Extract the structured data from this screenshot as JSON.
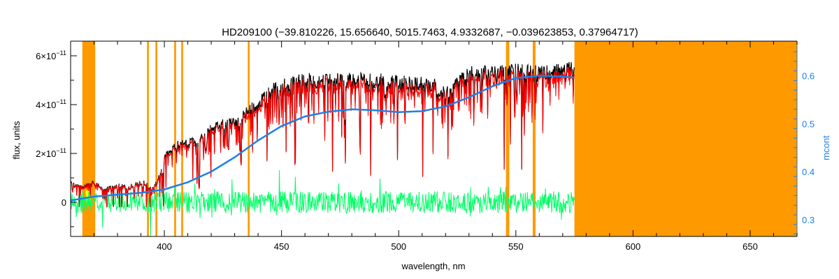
{
  "chart_data": {
    "type": "line",
    "title": "HD209100    (−39.810226, 15.656640, 5015.7463, 4.9332687, −0.039623853, 0.37964717)",
    "xlabel": "wavelength, nm",
    "ylabel": "flux, units",
    "y2label": "mcont",
    "xlim": [
      360,
      670
    ],
    "ylim": [
      -1.4e-11,
      6.6e-11
    ],
    "y2lim": [
      0.265,
      0.672
    ],
    "x_ticks": [
      400,
      450,
      500,
      550,
      600,
      650
    ],
    "x_tick_labels": [
      "400",
      "450",
      "500",
      "550",
      "600",
      "650"
    ],
    "y_ticks": [
      0,
      2e-11,
      4e-11,
      6e-11
    ],
    "y_tick_labels": [
      {
        "base": "0",
        "exp": ""
      },
      {
        "base": "2×10",
        "exp": "−11"
      },
      {
        "base": "4×10",
        "exp": "−11"
      },
      {
        "base": "6×10",
        "exp": "−11"
      }
    ],
    "y2_ticks": [
      0.3,
      0.4,
      0.5,
      0.6
    ],
    "y2_tick_labels": [
      "0.3",
      "0.4",
      "0.5",
      "0.6"
    ],
    "colors": {
      "observed": "#000000",
      "model": "#ff0000",
      "residual": "#00ff66",
      "continuum": "#1e7fe6",
      "masked": "#ff9900",
      "highlight": "#ffff00",
      "right_axis": "#1e7fe6"
    },
    "masked_bands": [
      [
        365.0,
        370.5
      ],
      [
        392.6,
        393.4
      ],
      [
        396.2,
        397.0
      ],
      [
        404.2,
        405.0
      ],
      [
        407.2,
        408.0
      ],
      [
        435.6,
        436.4
      ],
      [
        545.8,
        547.2
      ],
      [
        557.2,
        558.4
      ],
      [
        575.0,
        670.0
      ]
    ],
    "highlight_band": [
      366.3,
      368.6
    ],
    "observed_envelope": [
      [
        360,
        1.2e-11
      ],
      [
        365,
        1e-11
      ],
      [
        370,
        1.2e-11
      ],
      [
        375,
        9e-12
      ],
      [
        380,
        1.1e-11
      ],
      [
        385,
        1e-11
      ],
      [
        390,
        1.3e-11
      ],
      [
        395,
        9e-12
      ],
      [
        400,
        2e-11
      ],
      [
        405,
        2.5e-11
      ],
      [
        410,
        2.6e-11
      ],
      [
        415,
        2.7e-11
      ],
      [
        420,
        3.2e-11
      ],
      [
        425,
        3.4e-11
      ],
      [
        430,
        3.5e-11
      ],
      [
        435,
        3.9e-11
      ],
      [
        440,
        4.3e-11
      ],
      [
        445,
        4.8e-11
      ],
      [
        450,
        5.1e-11
      ],
      [
        455,
        5.2e-11
      ],
      [
        460,
        5.3e-11
      ],
      [
        470,
        5.3e-11
      ],
      [
        480,
        5.3e-11
      ],
      [
        490,
        5.3e-11
      ],
      [
        500,
        5.2e-11
      ],
      [
        510,
        5.2e-11
      ],
      [
        515,
        5.1e-11
      ],
      [
        520,
        4.7e-11
      ],
      [
        530,
        5.6e-11
      ],
      [
        540,
        5.6e-11
      ],
      [
        550,
        5.7e-11
      ],
      [
        560,
        5.6e-11
      ],
      [
        570,
        5.7e-11
      ],
      [
        575,
        5.8e-11
      ]
    ],
    "continuum": {
      "x": [
        360,
        370,
        380,
        390,
        400,
        410,
        420,
        430,
        440,
        450,
        460,
        470,
        480,
        490,
        500,
        510,
        520,
        530,
        540,
        550,
        560,
        570,
        575
      ],
      "y": [
        0.34,
        0.348,
        0.352,
        0.356,
        0.363,
        0.378,
        0.4,
        0.43,
        0.465,
        0.495,
        0.515,
        0.525,
        0.53,
        0.528,
        0.524,
        0.526,
        0.536,
        0.555,
        0.578,
        0.595,
        0.6,
        0.598,
        0.596
      ]
    }
  }
}
